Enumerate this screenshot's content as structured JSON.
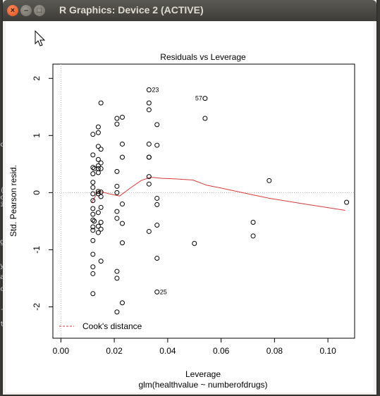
{
  "window": {
    "title": "R Graphics: Device 2 (ACTIVE)",
    "buttons": {
      "close": "×",
      "minimize": "–",
      "maximize": "□"
    }
  },
  "background": {
    "glyphs": [
      "c",
      "(",
      "c",
      "i",
      "g",
      "y",
      "a",
      "c",
      "-",
      "t"
    ]
  },
  "chart_data": {
    "type": "scatter",
    "title": "Residuals vs Leverage",
    "xlabel": "Leverage",
    "sublabel": "glm(healthvalue ~ numberofdrugs)",
    "ylabel": "Std. Pearson resid.",
    "xlim": [
      -0.003,
      0.11
    ],
    "ylim": [
      -2.55,
      2.25
    ],
    "x_ticks": [
      "0.00",
      "0.02",
      "0.04",
      "0.06",
      "0.08",
      "0.10"
    ],
    "y_ticks": [
      "2",
      "1",
      "0",
      "-1",
      "-2"
    ],
    "legend": {
      "label": "Cook's distance",
      "position": "bottom-left"
    },
    "line_color": "#d63a3a",
    "points": [
      [
        0.012,
        1.02
      ],
      [
        0.012,
        0.66
      ],
      [
        0.012,
        0.44
      ],
      [
        0.012,
        0.33
      ],
      [
        0.012,
        0.18
      ],
      [
        0.012,
        0.09
      ],
      [
        0.012,
        -0.02
      ],
      [
        0.012,
        -0.14
      ],
      [
        0.012,
        -0.28
      ],
      [
        0.012,
        -0.38
      ],
      [
        0.012,
        -0.48
      ],
      [
        0.012,
        -0.6
      ],
      [
        0.012,
        -0.66
      ],
      [
        0.012,
        -0.84
      ],
      [
        0.012,
        -1.08
      ],
      [
        0.012,
        -1.3
      ],
      [
        0.012,
        -1.42
      ],
      [
        0.012,
        -1.77
      ],
      [
        0.0125,
        0.42
      ],
      [
        0.0125,
        -0.5
      ],
      [
        0.014,
        1.15
      ],
      [
        0.014,
        1.05
      ],
      [
        0.014,
        0.81
      ],
      [
        0.014,
        0.58
      ],
      [
        0.014,
        0.47
      ],
      [
        0.014,
        0.42
      ],
      [
        0.014,
        0.35
      ],
      [
        0.014,
        0.02
      ],
      [
        0.014,
        -0.02
      ],
      [
        0.014,
        -0.35
      ],
      [
        0.014,
        -0.59
      ],
      [
        0.014,
        -0.7
      ],
      [
        0.015,
        1.57
      ],
      [
        0.015,
        0.76
      ],
      [
        0.015,
        0.52
      ],
      [
        0.015,
        0.42
      ],
      [
        0.015,
        0.01
      ],
      [
        0.015,
        -0.07
      ],
      [
        0.015,
        -0.26
      ],
      [
        0.015,
        -0.52
      ],
      [
        0.015,
        -0.64
      ],
      [
        0.015,
        -1.2
      ],
      [
        0.021,
        1.3
      ],
      [
        0.021,
        1.2
      ],
      [
        0.021,
        0.37
      ],
      [
        0.021,
        0.11
      ],
      [
        0.021,
        0.0
      ],
      [
        0.021,
        -0.33
      ],
      [
        0.021,
        -0.45
      ],
      [
        0.021,
        -1.38
      ],
      [
        0.021,
        -1.5
      ],
      [
        0.021,
        -2.09
      ],
      [
        0.023,
        1.32
      ],
      [
        0.023,
        0.85
      ],
      [
        0.023,
        0.62
      ],
      [
        0.023,
        -0.2
      ],
      [
        0.023,
        -0.54
      ],
      [
        0.023,
        -0.88
      ],
      [
        0.023,
        -1.93
      ],
      [
        0.033,
        1.8
      ],
      [
        0.033,
        1.57
      ],
      [
        0.033,
        1.45
      ],
      [
        0.033,
        0.85
      ],
      [
        0.033,
        0.62
      ],
      [
        0.033,
        0.62
      ],
      [
        0.033,
        0.28
      ],
      [
        0.033,
        0.15
      ],
      [
        0.033,
        -0.68
      ],
      [
        0.036,
        1.19
      ],
      [
        0.036,
        0.83
      ],
      [
        0.036,
        -0.1
      ],
      [
        0.036,
        -0.21
      ],
      [
        0.036,
        -0.57
      ],
      [
        0.036,
        -1.15
      ],
      [
        0.036,
        -1.74
      ],
      [
        0.05,
        -0.89
      ],
      [
        0.054,
        1.65
      ],
      [
        0.054,
        1.3
      ],
      [
        0.072,
        -0.52
      ],
      [
        0.072,
        -0.76
      ],
      [
        0.078,
        0.21
      ],
      [
        0.107,
        -0.17
      ]
    ],
    "point_labels": [
      {
        "text": "23",
        "x": 0.033,
        "y": 1.8,
        "side": "right"
      },
      {
        "text": "57",
        "x": 0.054,
        "y": 1.65,
        "side": "left"
      },
      {
        "text": "25",
        "x": 0.036,
        "y": -1.74,
        "side": "right"
      }
    ],
    "smooth_line": [
      [
        0.0115,
        -0.18
      ],
      [
        0.014,
        0.03
      ],
      [
        0.018,
        -0.02
      ],
      [
        0.022,
        -0.06
      ],
      [
        0.026,
        0.08
      ],
      [
        0.03,
        0.21
      ],
      [
        0.0335,
        0.27
      ],
      [
        0.038,
        0.25
      ],
      [
        0.043,
        0.24
      ],
      [
        0.0495,
        0.22
      ],
      [
        0.0545,
        0.13
      ],
      [
        0.06,
        0.08
      ],
      [
        0.072,
        -0.04
      ],
      [
        0.078,
        -0.1
      ],
      [
        0.09,
        -0.19
      ],
      [
        0.1065,
        -0.31
      ]
    ]
  }
}
